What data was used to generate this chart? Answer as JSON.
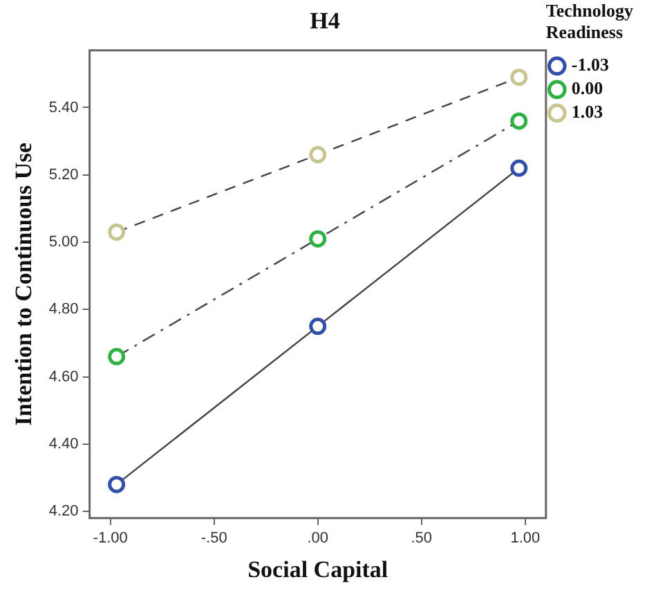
{
  "chart_data": {
    "type": "line",
    "title": "H4",
    "xlabel": "Social Capital",
    "ylabel": "Intention to Continuous Use",
    "legend_title": "Technology Readiness",
    "x": [
      -0.97,
      0,
      0.97
    ],
    "series": [
      {
        "name": "-1.03",
        "color": "#3350a8",
        "values": [
          4.28,
          4.75,
          5.22
        ],
        "line_style": "solid"
      },
      {
        "name": "0.00",
        "color": "#2eb043",
        "values": [
          4.66,
          5.01,
          5.36
        ],
        "line_style": "dashdot"
      },
      {
        "name": "1.03",
        "color": "#c8c68e",
        "values": [
          5.03,
          5.26,
          5.49
        ],
        "line_style": "dashed"
      }
    ],
    "xlim": [
      -1.1,
      1.1
    ],
    "xticks": [
      {
        "value": -1,
        "label": "-1.00"
      },
      {
        "value": -0.5,
        "label": "-.50"
      },
      {
        "value": 0,
        "label": ".00"
      },
      {
        "value": 0.5,
        "label": ".50"
      },
      {
        "value": 1,
        "label": "1.00"
      }
    ],
    "ylim": [
      4.18,
      5.57
    ],
    "yticks": [
      {
        "value": 4.2,
        "label": "4.20"
      },
      {
        "value": 4.4,
        "label": "4.40"
      },
      {
        "value": 4.6,
        "label": "4.60"
      },
      {
        "value": 4.8,
        "label": "4.80"
      },
      {
        "value": 5.0,
        "label": "5.00"
      },
      {
        "value": 5.2,
        "label": "5.20"
      },
      {
        "value": 5.4,
        "label": "5.40"
      }
    ],
    "grid": false,
    "legend": "top right",
    "marker": "circle"
  }
}
